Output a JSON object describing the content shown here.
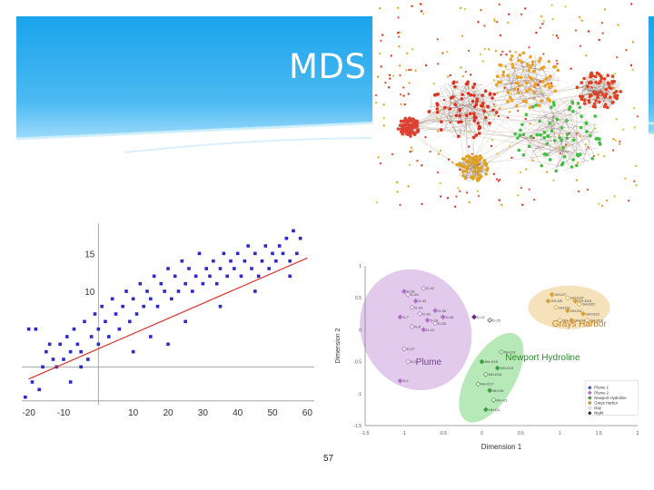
{
  "slide": {
    "title": "MDS",
    "page_number": "57"
  },
  "colors": {
    "header_top": "#1aa3ec",
    "header_bottom": "#8fd6fb",
    "scatter_points": "#2a2acc",
    "regression_line": "#e0302a",
    "plume_ellipse": "#c8a0d8",
    "newport_ellipse": "#8fdc8f",
    "grays_ellipse": "#f3d9a8"
  },
  "chart_data": [
    {
      "type": "scatter",
      "title": "",
      "xlabel": "",
      "ylabel": "",
      "x_ticks": [
        "-20",
        "-10",
        "10",
        "20",
        "30",
        "40",
        "50",
        "60"
      ],
      "y_ticks": [
        "10",
        "15"
      ],
      "xlim": [
        -22,
        62
      ],
      "ylim": [
        -5,
        19
      ],
      "regression": {
        "slope": 0.2,
        "intercept": 2.4
      },
      "points": [
        [
          -20,
          5
        ],
        [
          -19,
          -2
        ],
        [
          -18,
          5
        ],
        [
          -17,
          -3
        ],
        [
          -16,
          0
        ],
        [
          -15,
          2
        ],
        [
          -14,
          3
        ],
        [
          -13,
          1
        ],
        [
          -12,
          0
        ],
        [
          -11,
          3
        ],
        [
          -10,
          1
        ],
        [
          -9,
          4
        ],
        [
          -8,
          2
        ],
        [
          -7,
          5
        ],
        [
          -6,
          3
        ],
        [
          -5,
          2
        ],
        [
          -4,
          6
        ],
        [
          -3,
          1
        ],
        [
          -2,
          4
        ],
        [
          -1,
          7
        ],
        [
          0,
          3
        ],
        [
          0,
          5
        ],
        [
          1,
          8
        ],
        [
          2,
          6
        ],
        [
          3,
          4
        ],
        [
          4,
          9
        ],
        [
          5,
          7
        ],
        [
          6,
          5
        ],
        [
          7,
          8
        ],
        [
          8,
          10
        ],
        [
          9,
          6
        ],
        [
          10,
          9
        ],
        [
          11,
          7
        ],
        [
          12,
          11
        ],
        [
          13,
          8
        ],
        [
          14,
          10
        ],
        [
          15,
          9
        ],
        [
          16,
          12
        ],
        [
          17,
          8
        ],
        [
          18,
          11
        ],
        [
          19,
          10
        ],
        [
          20,
          13
        ],
        [
          21,
          9
        ],
        [
          22,
          12
        ],
        [
          23,
          10
        ],
        [
          24,
          14
        ],
        [
          25,
          11
        ],
        [
          26,
          13
        ],
        [
          27,
          10
        ],
        [
          28,
          12
        ],
        [
          29,
          15
        ],
        [
          30,
          11
        ],
        [
          31,
          13
        ],
        [
          32,
          12
        ],
        [
          33,
          14
        ],
        [
          34,
          11
        ],
        [
          35,
          13
        ],
        [
          36,
          15
        ],
        [
          37,
          12
        ],
        [
          38,
          14
        ],
        [
          39,
          13
        ],
        [
          40,
          15
        ],
        [
          41,
          12
        ],
        [
          42,
          14
        ],
        [
          43,
          16
        ],
        [
          44,
          13
        ],
        [
          45,
          15
        ],
        [
          46,
          12
        ],
        [
          47,
          14
        ],
        [
          48,
          16
        ],
        [
          49,
          13
        ],
        [
          50,
          15
        ],
        [
          51,
          14
        ],
        [
          52,
          16
        ],
        [
          53,
          15
        ],
        [
          54,
          17
        ],
        [
          55,
          14
        ],
        [
          56,
          18
        ],
        [
          57,
          15
        ],
        [
          58,
          17
        ],
        [
          -21,
          -4
        ],
        [
          -8,
          -2
        ],
        [
          -5,
          0
        ],
        [
          10,
          2
        ],
        [
          15,
          4
        ],
        [
          20,
          3
        ],
        [
          25,
          6
        ],
        [
          35,
          8
        ],
        [
          45,
          10
        ],
        [
          55,
          12
        ]
      ]
    },
    {
      "type": "scatter",
      "title": "",
      "xlabel": "Dimension 1",
      "ylabel": "Dimension 2",
      "x_ticks": [
        "-1.5",
        "-1",
        "-0.5",
        "0",
        "0.5",
        "1",
        "1.5",
        "2"
      ],
      "y_ticks": [
        "1",
        "0.5",
        "0",
        "-0.5",
        "-1",
        "-1.5"
      ],
      "xlim": [
        -1.5,
        2
      ],
      "ylim": [
        -1.5,
        1
      ],
      "groups": [
        {
          "name": "Plume",
          "label": "Plume",
          "color": "#b070c8",
          "points": [
            [
              -1.0,
              0.6
            ],
            [
              -0.95,
              0.55
            ],
            [
              -0.85,
              0.45
            ],
            [
              -0.9,
              0.35
            ],
            [
              -1.05,
              0.2
            ],
            [
              -0.8,
              0.25
            ],
            [
              -0.7,
              0.15
            ],
            [
              -0.9,
              0.05
            ],
            [
              -0.75,
              0.0
            ],
            [
              -0.6,
              0.1
            ],
            [
              -0.6,
              0.3
            ],
            [
              -0.75,
              0.65
            ],
            [
              -0.5,
              0.2
            ],
            [
              -1.0,
              -0.3
            ],
            [
              -1.05,
              -0.8
            ],
            [
              -0.95,
              -0.5
            ]
          ],
          "point_labels": [
            "D-33",
            "D-40",
            "D-43",
            "D-19",
            "D-7",
            "D-16",
            "D-13",
            "D-8",
            "D-10",
            "D-30",
            "D-38",
            "D-42",
            "D-26",
            "D-27",
            "D-1",
            "D-2"
          ]
        },
        {
          "name": "Newport Hydroline",
          "label": "Newport Hydroline",
          "color": "#3ca03c",
          "points": [
            [
              0.0,
              -0.5
            ],
            [
              0.05,
              -0.7
            ],
            [
              0.2,
              -0.6
            ],
            [
              -0.05,
              -0.85
            ],
            [
              0.1,
              -0.95
            ],
            [
              0.15,
              -1.1
            ],
            [
              0.05,
              -1.25
            ],
            [
              0.25,
              -0.35
            ]
          ],
          "point_labels": [
            "NH-D15",
            "NH-D16",
            "NH-D19",
            "NH-D17",
            "NH-D5",
            "NH-D1",
            "NH-D4",
            "NH-D3"
          ]
        },
        {
          "name": "Grays Harbor",
          "label": "Grays Harbor",
          "color": "#d8a030",
          "points": [
            [
              0.9,
              0.55
            ],
            [
              1.1,
              0.5
            ],
            [
              1.2,
              0.45
            ],
            [
              0.95,
              0.35
            ],
            [
              1.1,
              0.3
            ],
            [
              1.25,
              0.4
            ],
            [
              1.3,
              0.25
            ],
            [
              1.0,
              0.15
            ],
            [
              1.15,
              0.15
            ],
            [
              1.35,
              0.15
            ],
            [
              0.85,
              0.45
            ]
          ],
          "point_labels": [
            "GH-D7",
            "GH-D10",
            "GH-D15",
            "GH-D3",
            "GH-D4",
            "GH-D22",
            "GH-D23",
            "GH-D1",
            "GH-D25",
            "GH-D18",
            "GH-D5"
          ]
        },
        {
          "name": "Other",
          "label": "",
          "color": "#6a2a90",
          "points": [
            [
              -0.1,
              0.2
            ],
            [
              0.1,
              0.15
            ]
          ],
          "point_labels": [
            "D-22",
            "D-25"
          ]
        }
      ],
      "legend": {
        "position": "bottom-right",
        "entries": [
          "Plume 1",
          "Plume 2",
          "Newport Hydroline",
          "Grays Harbor",
          "Day",
          "Night"
        ]
      }
    }
  ],
  "network": {
    "description_label": "network graph",
    "clusters": [
      {
        "color": "#e03020",
        "cx": 100,
        "cy": 120,
        "r": 40
      },
      {
        "color": "#f0a020",
        "cx": 170,
        "cy": 90,
        "r": 38
      },
      {
        "color": "#40c040",
        "cx": 205,
        "cy": 150,
        "r": 48
      },
      {
        "color": "#e04020",
        "cx": 250,
        "cy": 100,
        "r": 25
      },
      {
        "color": "#e0a020",
        "cx": 110,
        "cy": 185,
        "r": 18
      },
      {
        "color": "#e04030",
        "cx": 40,
        "cy": 140,
        "r": 12
      }
    ]
  }
}
